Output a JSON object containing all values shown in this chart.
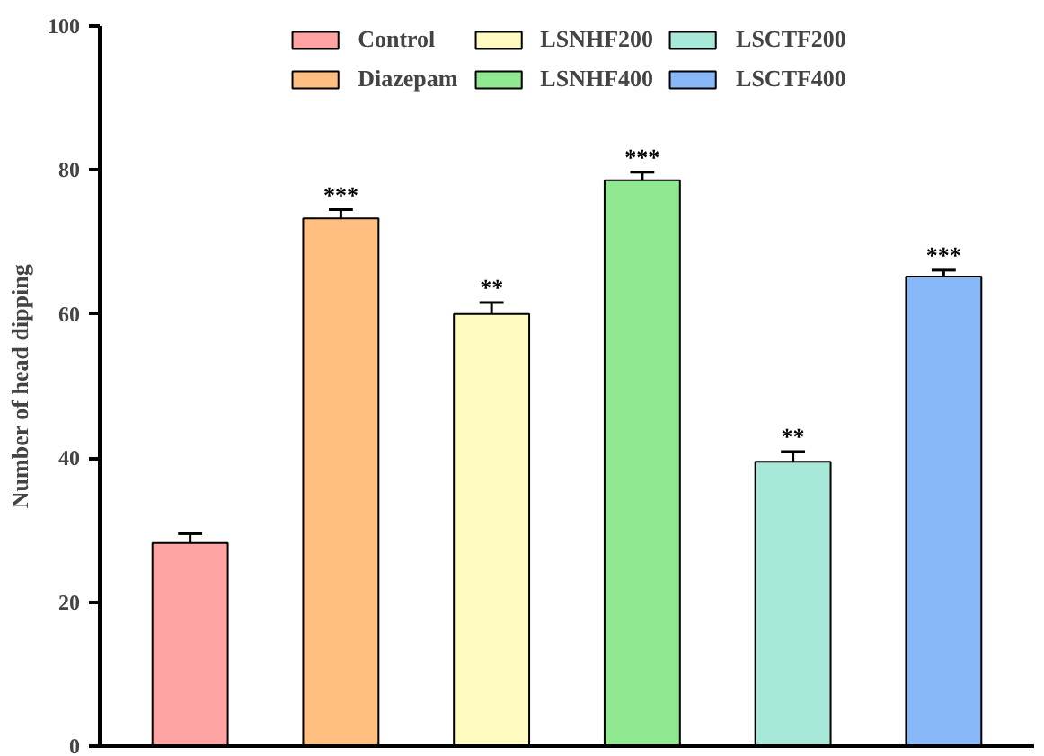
{
  "chart_data": {
    "type": "bar",
    "ylabel": "Number of head dipping",
    "categories": [
      null,
      null,
      null,
      null,
      null,
      null
    ],
    "series": [
      {
        "name": "Control",
        "color": "#ffa3a3",
        "values": [
          28.2,
          null,
          null,
          null,
          null,
          null
        ],
        "errors": [
          [
            28.2,
            29.5
          ],
          null,
          null,
          null,
          null,
          null
        ],
        "value_labels": [
          null,
          null,
          null,
          null,
          null,
          null
        ]
      },
      {
        "name": "Diazepam",
        "color": "#ffbf80",
        "values": [
          null,
          73.3,
          null,
          null,
          null,
          null
        ],
        "errors": [
          null,
          [
            73.3,
            74.5
          ],
          null,
          null,
          null,
          null
        ],
        "value_labels": [
          null,
          "***",
          null,
          null,
          null,
          null
        ]
      },
      {
        "name": "LSNHF200",
        "color": "#fffac0",
        "values": [
          null,
          null,
          60,
          null,
          null,
          null
        ],
        "errors": [
          null,
          null,
          [
            60,
            61.6
          ],
          null,
          null,
          null
        ],
        "value_labels": [
          null,
          null,
          "**",
          null,
          null,
          null
        ]
      },
      {
        "name": "LSNHF400",
        "color": "#90e890",
        "values": [
          null,
          null,
          null,
          78.6,
          null,
          null
        ],
        "errors": [
          null,
          null,
          null,
          [
            78.6,
            79.7
          ],
          null,
          null
        ],
        "value_labels": [
          null,
          null,
          null,
          "***",
          null,
          null
        ]
      },
      {
        "name": "LSCTF200",
        "color": "#a8e8d8",
        "values": [
          null,
          null,
          null,
          null,
          39.5,
          null
        ],
        "errors": [
          null,
          null,
          null,
          null,
          [
            39.5,
            40.9
          ],
          null
        ],
        "value_labels": [
          null,
          null,
          null,
          null,
          "**",
          null
        ]
      },
      {
        "name": "LSCTF400",
        "color": "#88b8f8",
        "values": [
          null,
          null,
          null,
          null,
          null,
          65.2
        ],
        "errors": [
          null,
          null,
          null,
          null,
          null,
          [
            65.2,
            66.1
          ]
        ],
        "value_labels": [
          null,
          null,
          null,
          null,
          null,
          "***"
        ]
      }
    ],
    "ylim": [
      0,
      100
    ],
    "yticks": [
      0,
      20,
      40,
      60,
      80,
      100
    ],
    "grid": false,
    "legend": "top",
    "tick_labels": "y"
  }
}
